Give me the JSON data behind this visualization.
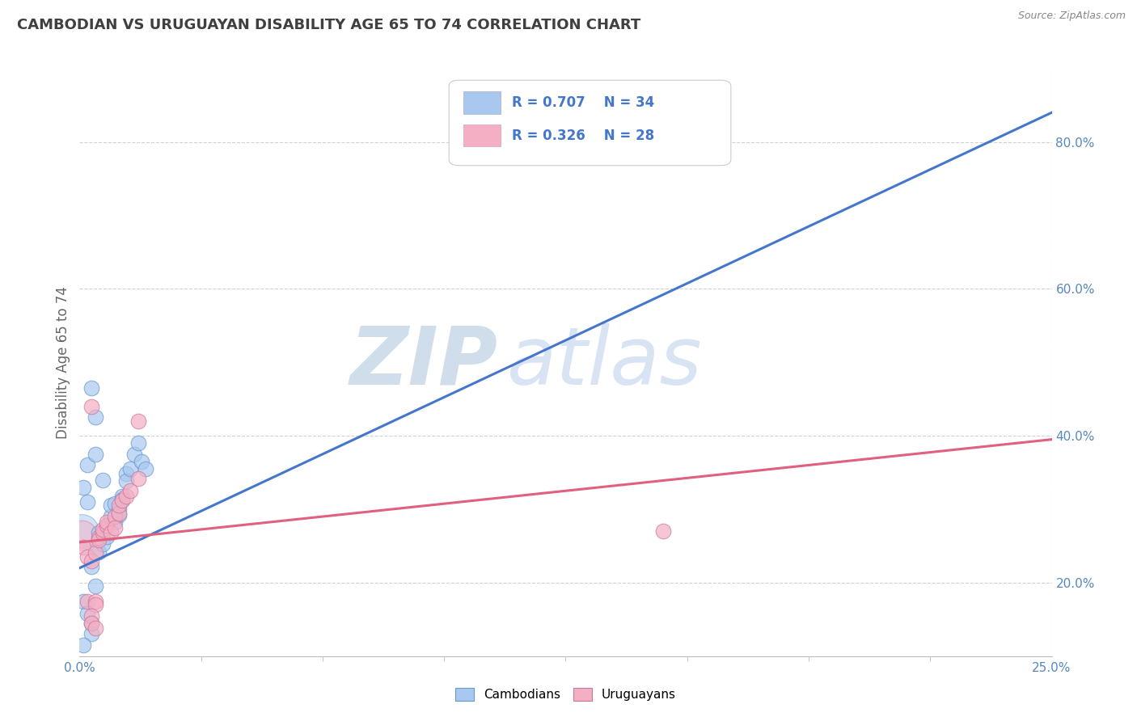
{
  "title": "CAMBODIAN VS URUGUAYAN DISABILITY AGE 65 TO 74 CORRELATION CHART",
  "source": "Source: ZipAtlas.com",
  "ylabel": "Disability Age 65 to 74",
  "legend1_r": "R = 0.707",
  "legend1_n": "N = 34",
  "legend2_r": "R = 0.326",
  "legend2_n": "N = 28",
  "cambodian_color": "#a8c8f0",
  "uruguayan_color": "#f4afc4",
  "line1_color": "#4477cc",
  "line2_color": "#e06080",
  "background_color": "#ffffff",
  "grid_color": "#cccccc",
  "title_color": "#404040",
  "watermark_zip": "ZIP",
  "watermark_atlas": "atlas",
  "xlim": [
    0,
    0.25
  ],
  "ylim": [
    0.1,
    0.9
  ],
  "line1_x": [
    0.0,
    0.25
  ],
  "line1_y": [
    0.22,
    0.84
  ],
  "line2_x": [
    0.0,
    0.25
  ],
  "line2_y": [
    0.255,
    0.395
  ],
  "cambodian_scatter": [
    [
      0.001,
      0.175
    ],
    [
      0.002,
      0.158
    ],
    [
      0.003,
      0.222
    ],
    [
      0.004,
      0.195
    ],
    [
      0.005,
      0.242
    ],
    [
      0.005,
      0.268
    ],
    [
      0.006,
      0.253
    ],
    [
      0.007,
      0.278
    ],
    [
      0.007,
      0.263
    ],
    [
      0.008,
      0.29
    ],
    [
      0.008,
      0.305
    ],
    [
      0.009,
      0.308
    ],
    [
      0.009,
      0.282
    ],
    [
      0.01,
      0.3
    ],
    [
      0.01,
      0.292
    ],
    [
      0.011,
      0.318
    ],
    [
      0.011,
      0.313
    ],
    [
      0.012,
      0.348
    ],
    [
      0.012,
      0.338
    ],
    [
      0.013,
      0.355
    ],
    [
      0.014,
      0.375
    ],
    [
      0.015,
      0.39
    ],
    [
      0.016,
      0.365
    ],
    [
      0.017,
      0.355
    ],
    [
      0.002,
      0.36
    ],
    [
      0.003,
      0.465
    ],
    [
      0.004,
      0.375
    ],
    [
      0.004,
      0.425
    ],
    [
      0.006,
      0.34
    ],
    [
      0.001,
      0.33
    ],
    [
      0.002,
      0.31
    ],
    [
      0.003,
      0.145
    ],
    [
      0.003,
      0.13
    ],
    [
      0.001,
      0.115
    ]
  ],
  "uruguayan_scatter": [
    [
      0.001,
      0.248
    ],
    [
      0.002,
      0.235
    ],
    [
      0.003,
      0.23
    ],
    [
      0.004,
      0.24
    ],
    [
      0.005,
      0.262
    ],
    [
      0.005,
      0.258
    ],
    [
      0.006,
      0.268
    ],
    [
      0.006,
      0.272
    ],
    [
      0.007,
      0.278
    ],
    [
      0.007,
      0.282
    ],
    [
      0.008,
      0.268
    ],
    [
      0.009,
      0.29
    ],
    [
      0.009,
      0.275
    ],
    [
      0.01,
      0.295
    ],
    [
      0.01,
      0.305
    ],
    [
      0.011,
      0.312
    ],
    [
      0.012,
      0.318
    ],
    [
      0.013,
      0.325
    ],
    [
      0.015,
      0.342
    ],
    [
      0.015,
      0.42
    ],
    [
      0.003,
      0.44
    ],
    [
      0.002,
      0.175
    ],
    [
      0.004,
      0.175
    ],
    [
      0.004,
      0.17
    ],
    [
      0.003,
      0.155
    ],
    [
      0.003,
      0.145
    ],
    [
      0.004,
      0.138
    ],
    [
      0.15,
      0.27
    ]
  ]
}
